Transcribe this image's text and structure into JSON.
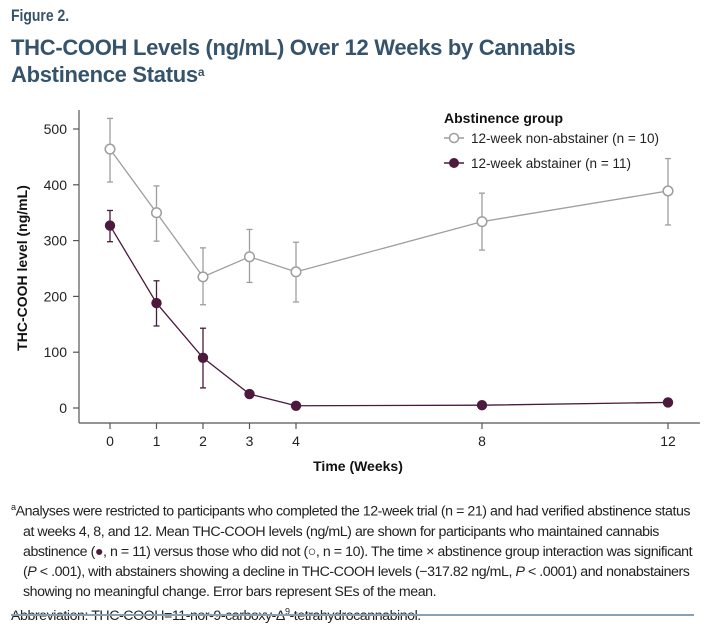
{
  "figure_label": "Figure 2.",
  "title": "THC-COOH Levels (ng/mL) Over 12 Weeks by Cannabis Abstinence Status",
  "title_superscript": "a",
  "colors": {
    "title": "#35536b",
    "non_abstainer": "#9e9e9e",
    "abstainer": "#4b1a3c",
    "rule": "#8aa0b5"
  },
  "chart_data": {
    "type": "line",
    "title": "THC-COOH Levels (ng/mL) Over 12 Weeks by Cannabis Abstinence Status",
    "xlabel": "Time (Weeks)",
    "ylabel": "THC-COOH level (ng/mL)",
    "x": [
      0,
      1,
      2,
      3,
      4,
      8,
      12
    ],
    "x_ticks": [
      "0",
      "1",
      "2",
      "3",
      "4",
      "8",
      "12"
    ],
    "y_ticks": [
      "0",
      "100",
      "200",
      "300",
      "400",
      "500"
    ],
    "xlim": [
      -0.5,
      12.7
    ],
    "ylim": [
      0,
      500
    ],
    "grid": false,
    "legend": {
      "title": "Abstinence group",
      "position": "top-right"
    },
    "series": [
      {
        "name": "12-week non-abstainer (n = 10)",
        "marker": "open-circle",
        "values": [
          464,
          350,
          235,
          271,
          244,
          334,
          389
        ],
        "error_upper": [
          519,
          398,
          287,
          320,
          297,
          385,
          447
        ],
        "error_lower": [
          405,
          299,
          185,
          225,
          190,
          283,
          328
        ]
      },
      {
        "name": "12-week abstainer (n = 11)",
        "marker": "filled-circle",
        "values": [
          327,
          188,
          90,
          25,
          4,
          5,
          10
        ],
        "error_upper": [
          354,
          228,
          143,
          null,
          null,
          null,
          null
        ],
        "error_lower": [
          298,
          147,
          36,
          null,
          null,
          null,
          null
        ]
      }
    ]
  },
  "footnote": {
    "marker": "a",
    "line1": "Analyses were restricted to participants who completed the 12-week trial (n = 21) and had verified abstinence status",
    "line2": "at weeks 4, 8, and 12. Mean THC-COOH levels (ng/mL) are shown for participants who maintained cannabis",
    "line3a": "abstinence (",
    "line3_filled_symbol": "●",
    "line3b": ", n = 11) versus those who did not (",
    "line3_open_symbol": "○",
    "line3c": ", n = 10). The time × abstinence group interaction was significant",
    "line4a": "(",
    "p": "P",
    "line4b": " < .001), with abstainers showing a decline in THC-COOH levels (−317.82 ng/mL, ",
    "line4c": " < .0001) and nonabstainers",
    "line5": "showing no meaningful change. Error bars represent SEs of the mean.",
    "abbreviation_a": "Abbreviation: THC-COOH=11-nor-9-carboxy-Δ",
    "abbreviation_sup": "9",
    "abbreviation_b": "-tetrahydrocannabinol."
  }
}
